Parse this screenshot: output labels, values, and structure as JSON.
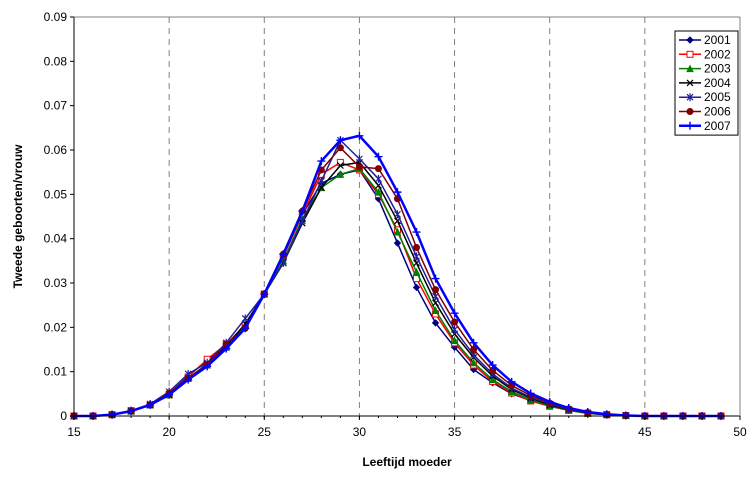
{
  "chart_data": {
    "type": "line",
    "title": "",
    "xlabel": "Leeftijd moeder",
    "ylabel": "Tweede geboorten/vrouw",
    "xlim": [
      15,
      50
    ],
    "ylim": [
      0,
      0.09
    ],
    "x_ticks": [
      "15",
      "20",
      "25",
      "30",
      "35",
      "40",
      "45",
      "50"
    ],
    "y_ticks": [
      "0",
      "0.01",
      "0.02",
      "0.03",
      "0.04",
      "0.05",
      "0.06",
      "0.07",
      "0.08",
      "0.09"
    ],
    "grid": "vertical dashed",
    "legend_position": "top-right",
    "x": [
      15,
      16,
      17,
      18,
      19,
      20,
      21,
      22,
      23,
      24,
      25,
      26,
      27,
      28,
      29,
      30,
      31,
      32,
      33,
      34,
      35,
      36,
      37,
      38,
      39,
      40,
      41,
      42,
      43,
      44,
      45,
      46,
      47,
      48,
      49
    ],
    "series": [
      {
        "name": "2001",
        "color": "#000080",
        "marker": "diamond",
        "values": [
          0,
          0,
          0.0003,
          0.0012,
          0.0026,
          0.005,
          0.009,
          0.0125,
          0.016,
          0.0205,
          0.0275,
          0.036,
          0.0455,
          0.0525,
          0.0545,
          0.0555,
          0.049,
          0.039,
          0.029,
          0.021,
          0.0155,
          0.0105,
          0.0075,
          0.005,
          0.0035,
          0.0022,
          0.0013,
          0.0006,
          0.0003,
          0.0001,
          0,
          0,
          0,
          0,
          0
        ]
      },
      {
        "name": "2002",
        "color": "#ff0000",
        "marker": "square",
        "values": [
          0,
          0,
          0.0003,
          0.0012,
          0.0025,
          0.0048,
          0.0088,
          0.0128,
          0.0162,
          0.0205,
          0.0275,
          0.036,
          0.0455,
          0.0545,
          0.0572,
          0.0555,
          0.05,
          0.042,
          0.031,
          0.023,
          0.0165,
          0.0115,
          0.0078,
          0.0052,
          0.0034,
          0.0022,
          0.0013,
          0.0006,
          0.0003,
          0.0001,
          0,
          0,
          0,
          0,
          0
        ]
      },
      {
        "name": "2003",
        "color": "#008000",
        "marker": "triangle",
        "values": [
          0,
          0,
          0.0003,
          0.0011,
          0.0025,
          0.0048,
          0.0085,
          0.0115,
          0.0155,
          0.0205,
          0.0275,
          0.035,
          0.0445,
          0.0515,
          0.0545,
          0.0558,
          0.0505,
          0.0415,
          0.0325,
          0.0238,
          0.017,
          0.012,
          0.0082,
          0.0055,
          0.0036,
          0.0023,
          0.0013,
          0.0006,
          0.0003,
          0.0001,
          0,
          0,
          0,
          0,
          0
        ]
      },
      {
        "name": "2004",
        "color": "#000000",
        "marker": "x",
        "values": [
          0,
          0,
          0.0003,
          0.0011,
          0.0025,
          0.0048,
          0.0085,
          0.0117,
          0.0158,
          0.0208,
          0.0275,
          0.0345,
          0.0435,
          0.0515,
          0.0565,
          0.0572,
          0.052,
          0.044,
          0.0345,
          0.0255,
          0.0185,
          0.0132,
          0.009,
          0.006,
          0.004,
          0.0025,
          0.0014,
          0.0007,
          0.0003,
          0.0001,
          0,
          0,
          0,
          0,
          0
        ]
      },
      {
        "name": "2005",
        "color": "#1f1f9f",
        "marker": "star",
        "values": [
          0,
          0,
          0.0003,
          0.0012,
          0.0027,
          0.0055,
          0.0095,
          0.012,
          0.0165,
          0.022,
          0.0275,
          0.0345,
          0.044,
          0.053,
          0.0622,
          0.058,
          0.0535,
          0.0455,
          0.036,
          0.027,
          0.0195,
          0.0138,
          0.0095,
          0.0063,
          0.0042,
          0.0027,
          0.0015,
          0.0007,
          0.0003,
          0.0001,
          0,
          0,
          0,
          0,
          0
        ]
      },
      {
        "name": "2006",
        "color": "#800000",
        "marker": "circle",
        "values": [
          0,
          0,
          0.0003,
          0.0011,
          0.0025,
          0.0052,
          0.0085,
          0.0115,
          0.0162,
          0.0198,
          0.0275,
          0.0365,
          0.0462,
          0.0555,
          0.0605,
          0.0562,
          0.0558,
          0.049,
          0.038,
          0.0285,
          0.0212,
          0.015,
          0.0103,
          0.0069,
          0.0046,
          0.0029,
          0.0016,
          0.0008,
          0.0003,
          0.0001,
          0,
          0,
          0,
          0,
          0
        ]
      },
      {
        "name": "2007",
        "color": "#0000ff",
        "marker": "plus",
        "values": [
          0,
          0,
          0.0003,
          0.0011,
          0.0025,
          0.0048,
          0.0082,
          0.0112,
          0.0152,
          0.0198,
          0.0275,
          0.0365,
          0.0462,
          0.0575,
          0.0622,
          0.0632,
          0.0585,
          0.0505,
          0.0415,
          0.031,
          0.0232,
          0.0165,
          0.0115,
          0.0077,
          0.0051,
          0.0032,
          0.0018,
          0.0009,
          0.0004,
          0.0001,
          0,
          0,
          0,
          0,
          0
        ]
      }
    ]
  }
}
